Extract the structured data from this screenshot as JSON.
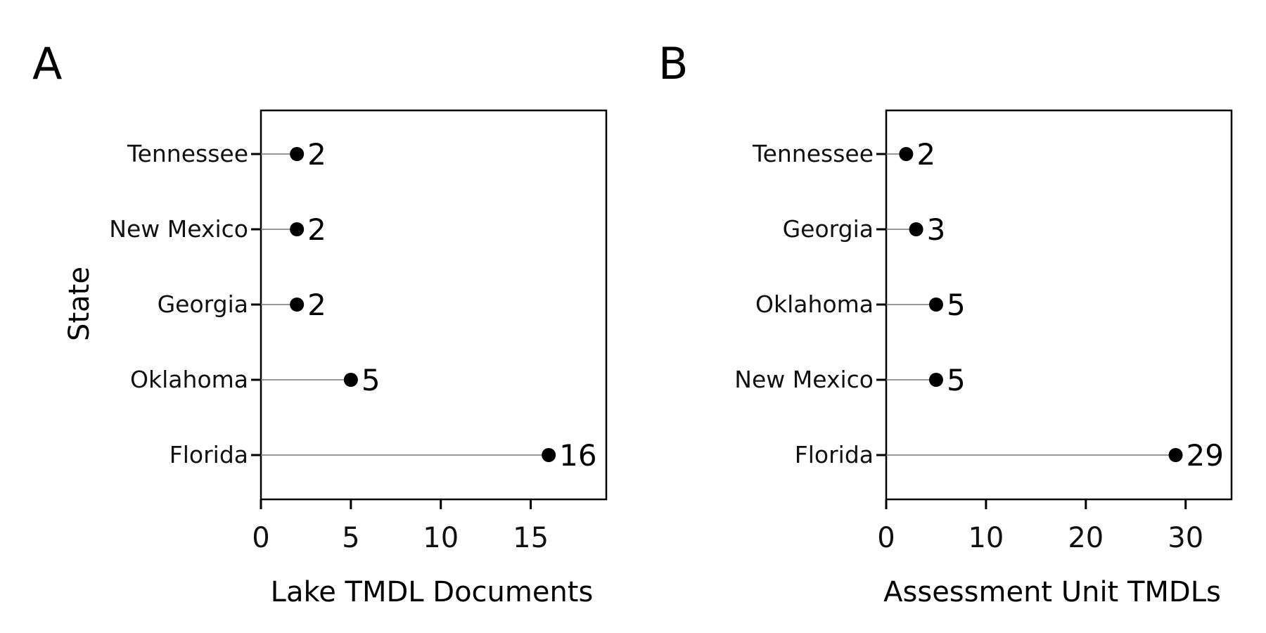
{
  "chart_data": [
    {
      "type": "lollipop",
      "panel_label": "A",
      "categories": [
        "Tennessee",
        "New Mexico",
        "Georgia",
        "Oklahoma",
        "Florida"
      ],
      "values": [
        2,
        2,
        2,
        5,
        16
      ],
      "value_labels": [
        "2",
        "2",
        "2",
        "5",
        "16"
      ],
      "xlabel": "Lake TMDL Documents",
      "ylabel": "State",
      "xlim": [
        0,
        19.2
      ],
      "xticks": [
        0,
        5,
        10,
        15
      ],
      "xtick_labels": [
        "0",
        "5",
        "10",
        "15"
      ],
      "grid": false,
      "legend": "none"
    },
    {
      "type": "lollipop",
      "panel_label": "B",
      "categories": [
        "Tennessee",
        "Georgia",
        "Oklahoma",
        "New Mexico",
        "Florida"
      ],
      "values": [
        2,
        3,
        5,
        5,
        29
      ],
      "value_labels": [
        "2",
        "3",
        "5",
        "5",
        "29"
      ],
      "xlabel": "Assessment Unit TMDLs",
      "ylabel": "",
      "xlim": [
        0,
        34.6
      ],
      "xticks": [
        0,
        10,
        20,
        30
      ],
      "xtick_labels": [
        "0",
        "10",
        "20",
        "30"
      ],
      "grid": false,
      "legend": "none"
    }
  ],
  "colors": {
    "marker": "#000000",
    "stem": "#777777",
    "frame": "#000000",
    "text": "#111111"
  }
}
